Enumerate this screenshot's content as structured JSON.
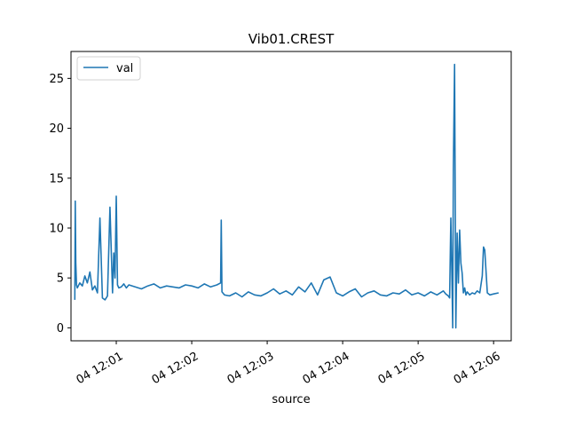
{
  "chart_data": {
    "type": "line",
    "title": "Vib01.CREST",
    "xlabel": "source",
    "ylabel": "",
    "x_unit": "time (HH:MM:SS on day 04)",
    "xlim": [
      "12:00:24",
      "12:06:14"
    ],
    "ylim": [
      -1.3,
      27.7
    ],
    "grid": false,
    "legend": {
      "position": "top-left",
      "entries": [
        "val"
      ]
    },
    "x_ticks": [
      {
        "value": "12:01:00",
        "label": "04 12:01"
      },
      {
        "value": "12:02:00",
        "label": "04 12:02"
      },
      {
        "value": "12:03:00",
        "label": "04 12:03"
      },
      {
        "value": "12:04:00",
        "label": "04 12:04"
      },
      {
        "value": "12:05:00",
        "label": "04 12:05"
      },
      {
        "value": "12:06:00",
        "label": "04 12:06"
      }
    ],
    "y_ticks": [
      0,
      5,
      10,
      15,
      20,
      25
    ],
    "series": [
      {
        "name": "val",
        "color": "#1f77b4",
        "x": [
          "12:00:27",
          "12:00:27.4",
          "12:00:27.8",
          "12:00:28.4",
          "12:00:29",
          "12:00:31",
          "12:00:33",
          "12:00:35",
          "12:00:37",
          "12:00:39",
          "12:00:41",
          "12:00:43",
          "12:00:45",
          "12:00:47",
          "12:00:49",
          "12:00:51",
          "12:00:53",
          "12:00:55",
          "12:00:57",
          "12:00:58",
          "12:00:59",
          "12:01:00",
          "12:01:01",
          "12:01:02",
          "12:01:04",
          "12:01:06",
          "12:01:08",
          "12:01:10",
          "12:01:15",
          "12:01:20",
          "12:01:25",
          "12:01:30",
          "12:01:35",
          "12:01:40",
          "12:01:45",
          "12:01:50",
          "12:01:55",
          "12:02:00",
          "12:02:05",
          "12:02:10",
          "12:02:15",
          "12:02:20",
          "12:02:23",
          "12:02:23.5",
          "12:02:24",
          "12:02:26",
          "12:02:30",
          "12:02:35",
          "12:02:40",
          "12:02:45",
          "12:02:50",
          "12:02:55",
          "12:03:00",
          "12:03:05",
          "12:03:10",
          "12:03:15",
          "12:03:20",
          "12:03:25",
          "12:03:30",
          "12:03:35",
          "12:03:40",
          "12:03:45",
          "12:03:50",
          "12:03:55",
          "12:04:00",
          "12:04:05",
          "12:04:10",
          "12:04:15",
          "12:04:20",
          "12:04:25",
          "12:04:30",
          "12:04:35",
          "12:04:40",
          "12:04:45",
          "12:04:50",
          "12:04:55",
          "12:05:00",
          "12:05:05",
          "12:05:10",
          "12:05:15",
          "12:05:20",
          "12:05:22",
          "12:05:24",
          "12:05:25",
          "12:05:26",
          "12:05:27",
          "12:05:27.5",
          "12:05:28",
          "12:05:29",
          "12:05:30",
          "12:05:31",
          "12:05:32",
          "12:05:33",
          "12:05:34",
          "12:05:35",
          "12:05:36",
          "12:05:37",
          "12:05:38",
          "12:05:39",
          "12:05:41",
          "12:05:43",
          "12:05:45",
          "12:05:47",
          "12:05:49",
          "12:05:51",
          "12:05:52",
          "12:05:53",
          "12:05:55",
          "12:05:57",
          "12:06:00",
          "12:06:04"
        ],
        "values": [
          2.8,
          12.7,
          6.5,
          4.3,
          4.0,
          4.5,
          4.2,
          5.2,
          4.5,
          5.6,
          3.8,
          4.2,
          3.5,
          11.0,
          3.0,
          2.8,
          3.2,
          12.1,
          3.5,
          7.5,
          5.0,
          13.2,
          4.3,
          4.0,
          4.1,
          4.4,
          4.0,
          4.3,
          4.1,
          3.9,
          4.2,
          4.4,
          4.0,
          4.2,
          4.1,
          4.0,
          4.3,
          4.2,
          4.0,
          4.4,
          4.1,
          4.3,
          4.5,
          10.8,
          3.6,
          3.3,
          3.2,
          3.5,
          3.1,
          3.6,
          3.3,
          3.2,
          3.5,
          3.9,
          3.4,
          3.7,
          3.3,
          4.1,
          3.6,
          4.5,
          3.3,
          4.8,
          5.1,
          3.5,
          3.2,
          3.6,
          3.9,
          3.1,
          3.5,
          3.7,
          3.3,
          3.2,
          3.5,
          3.4,
          3.8,
          3.3,
          3.5,
          3.2,
          3.6,
          3.3,
          3.7,
          3.4,
          3.2,
          3.0,
          11.0,
          4.0,
          0.0,
          15.8,
          26.4,
          0.0,
          9.5,
          4.5,
          9.8,
          6.5,
          5.5,
          3.5,
          4.0,
          3.3,
          3.6,
          3.3,
          3.5,
          3.4,
          3.7,
          3.5,
          5.2,
          8.1,
          7.8,
          3.5,
          3.3,
          3.4,
          3.5
        ]
      }
    ]
  }
}
